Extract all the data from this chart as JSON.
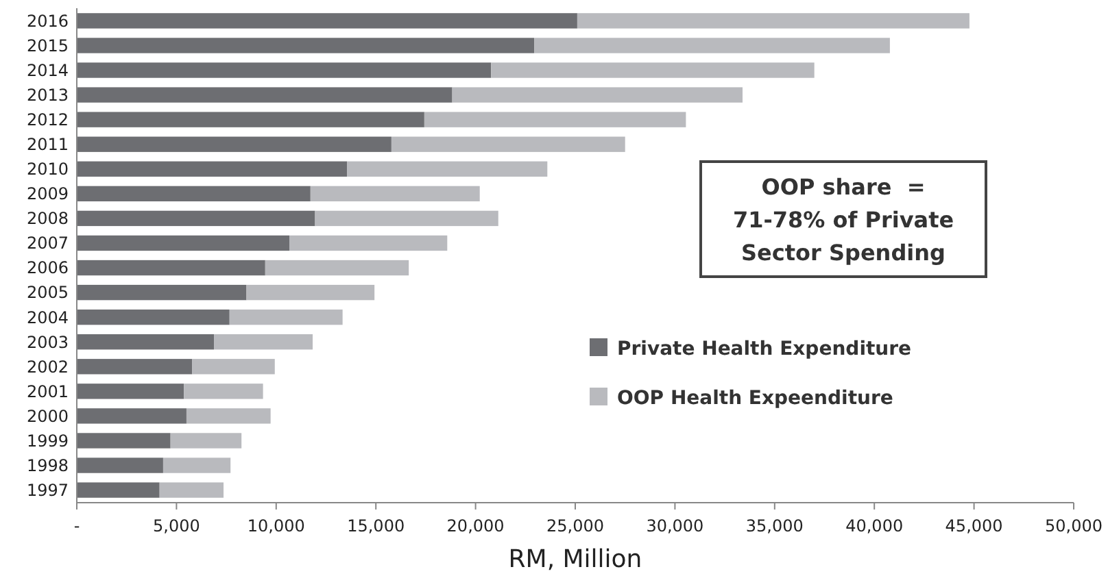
{
  "chart_data": {
    "type": "bar",
    "orientation": "horizontal",
    "stacked": true,
    "xlabel": "RM, Million",
    "categories": [
      "2016",
      "2015",
      "2014",
      "2013",
      "2012",
      "2011",
      "2010",
      "2009",
      "2008",
      "2007",
      "2006",
      "2005",
      "2004",
      "2003",
      "2002",
      "2001",
      "2000",
      "1999",
      "1998",
      "1997"
    ],
    "series": [
      {
        "name": "Private Health Expenditure",
        "color": "#6d6e72",
        "values": [
          25100,
          22940,
          20780,
          18830,
          17430,
          15780,
          13550,
          11720,
          11950,
          10660,
          9450,
          8510,
          7660,
          6880,
          5780,
          5370,
          5500,
          4700,
          4330,
          4150
        ]
      },
      {
        "name": "OOP Health Expeenditure",
        "color": "#b9babe",
        "values": [
          19670,
          17840,
          16210,
          14560,
          13120,
          11720,
          10050,
          8490,
          9190,
          7920,
          7200,
          6420,
          5670,
          4950,
          4150,
          3970,
          4220,
          3560,
          3380,
          3210
        ]
      }
    ],
    "xlim": [
      0,
      50000
    ],
    "xticks": [
      {
        "value": 0,
        "label": "-"
      },
      {
        "value": 5000,
        "label": "5,000"
      },
      {
        "value": 10000,
        "label": "10,000"
      },
      {
        "value": 15000,
        "label": "15,000"
      },
      {
        "value": 20000,
        "label": "20,000"
      },
      {
        "value": 25000,
        "label": "25,000"
      },
      {
        "value": 30000,
        "label": "30,000"
      },
      {
        "value": 35000,
        "label": "35,000"
      },
      {
        "value": 40000,
        "label": "40,000"
      },
      {
        "value": 45000,
        "label": "45,000"
      },
      {
        "value": 50000,
        "label": "50,000"
      }
    ],
    "grid": false,
    "legend": "right",
    "annotations": [
      "OOP share  =\n71-78% of Private\nSector Spending"
    ]
  }
}
